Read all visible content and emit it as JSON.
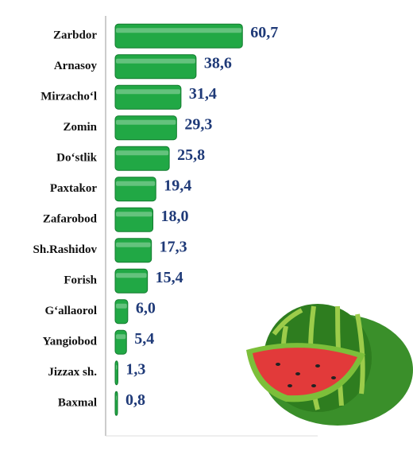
{
  "chart_data": {
    "type": "bar",
    "orientation": "horizontal",
    "categories": [
      "Zarbdor",
      "Arnasoy",
      "Mirzacho‘l",
      "Zomin",
      "Do‘stlik",
      "Paxtakor",
      "Zafarobod",
      "Sh.Rashidov",
      "Forish",
      "G‘allaorol",
      "Yangiobod",
      "Jizzax sh.",
      "Baxmal"
    ],
    "values": [
      60.7,
      38.6,
      31.4,
      29.3,
      25.8,
      19.4,
      18.0,
      17.3,
      15.4,
      6.0,
      5.4,
      1.3,
      0.8
    ],
    "value_labels": [
      "60,7",
      "38,6",
      "31,4",
      "29,3",
      "25,8",
      "19,4",
      "18,0",
      "17,3",
      "15,4",
      "6,0",
      "5,4",
      "1,3",
      "0,8"
    ],
    "color": "#21a845",
    "xlim": [
      0,
      100
    ]
  }
}
